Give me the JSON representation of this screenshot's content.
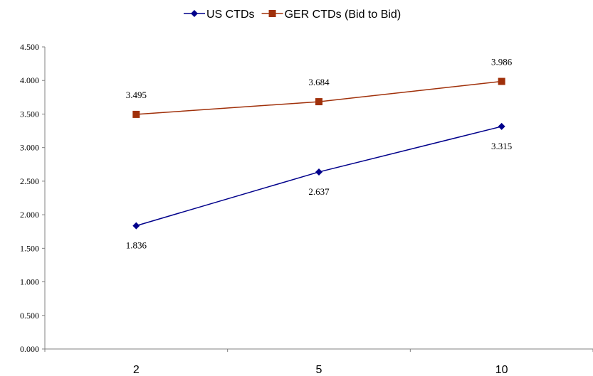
{
  "chart_data": {
    "type": "line",
    "title": "",
    "xlabel": "",
    "ylabel": "",
    "categories": [
      "2",
      "5",
      "10"
    ],
    "ylim": [
      0,
      4.5
    ],
    "yticks": [
      "0.000",
      "0.500",
      "1.000",
      "1.500",
      "2.000",
      "2.500",
      "3.000",
      "3.500",
      "4.000",
      "4.500"
    ],
    "grid": false,
    "legend_position": "top",
    "series": [
      {
        "name": "US CTDs",
        "values": [
          1.836,
          2.637,
          3.315
        ],
        "labels": [
          "1.836",
          "2.637",
          "3.315"
        ],
        "marker": "diamond",
        "color": "#00008B",
        "label_position": "below"
      },
      {
        "name": "GER CTDs (Bid to Bid)",
        "values": [
          3.495,
          3.684,
          3.986
        ],
        "labels": [
          "3.495",
          "3.684",
          "3.986"
        ],
        "marker": "square",
        "color": "#A0300A",
        "label_position": "above"
      }
    ]
  }
}
